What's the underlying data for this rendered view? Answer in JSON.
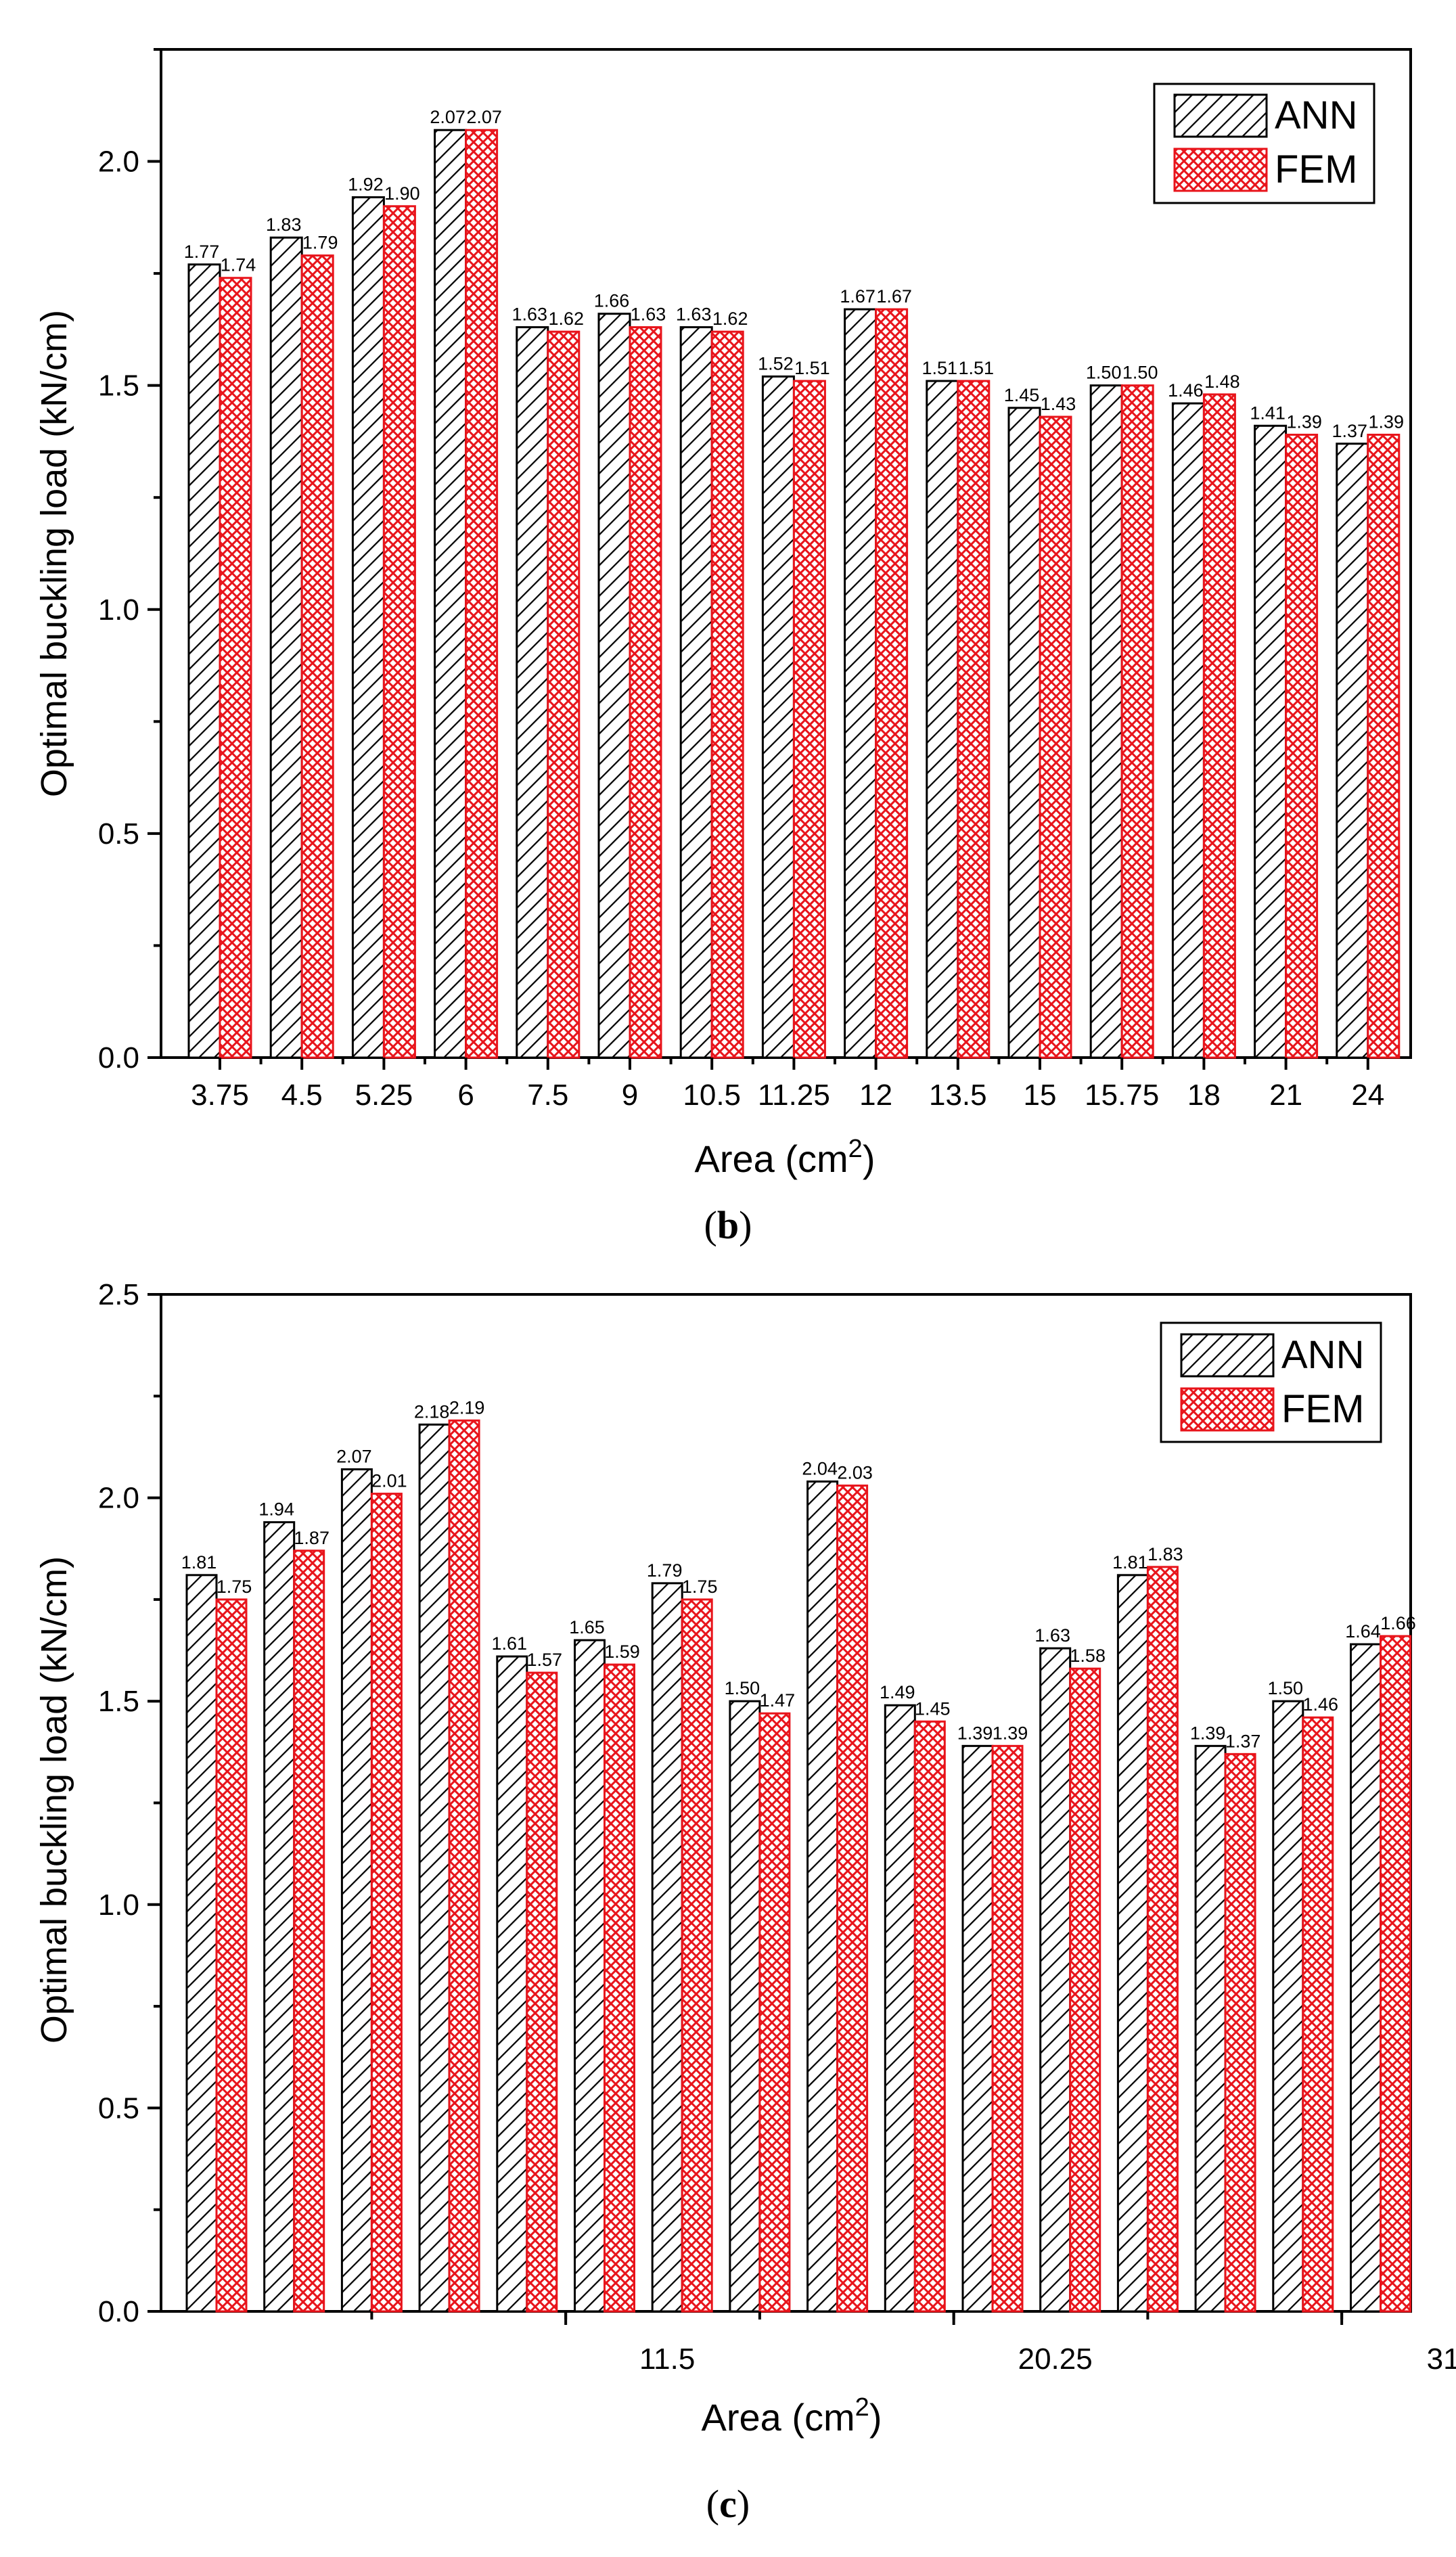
{
  "chart_data": [
    {
      "type": "bar",
      "panel": "b",
      "caption_letter": "b",
      "caption_open": "(",
      "caption_close": ")",
      "xlabel": "Area (cm",
      "xlabel_sup": "2",
      "xlabel_close": ")",
      "ylabel": "Optimal buckling load (kN/cm)",
      "ylim": [
        0,
        2.25
      ],
      "yticks": [
        "0.0",
        "0.5",
        "1.0",
        "1.5",
        "2.0"
      ],
      "categories": [
        "3.75",
        "4.5",
        "5.25",
        "6",
        "7.5",
        "9",
        "10.5",
        "11.25",
        "12",
        "13.5",
        "15",
        "15.75",
        "18",
        "21",
        "24"
      ],
      "series": [
        {
          "name": "ANN",
          "values": [
            1.77,
            1.83,
            1.92,
            2.07,
            1.63,
            1.66,
            1.63,
            1.52,
            1.67,
            1.51,
            1.45,
            1.5,
            1.46,
            1.41,
            1.37
          ]
        },
        {
          "name": "FEM",
          "values": [
            1.74,
            1.79,
            1.9,
            2.07,
            1.62,
            1.63,
            1.62,
            1.51,
            1.67,
            1.51,
            1.43,
            1.5,
            1.48,
            1.39,
            1.39
          ]
        }
      ],
      "legend": "top-right"
    },
    {
      "type": "bar",
      "panel": "c",
      "caption_letter": "c",
      "caption_open": "(",
      "caption_close": ")",
      "xlabel": "Area (cm",
      "xlabel_sup": "2",
      "xlabel_close": ")",
      "ylabel": "Optimal buckling load (kN/cm)",
      "ylim": [
        0,
        2.5
      ],
      "yticks": [
        "0.0",
        "0.5",
        "1.0",
        "1.5",
        "2.0",
        "2.5"
      ],
      "xtick_labels": [
        {
          "label": "11.5",
          "after_group": 5
        },
        {
          "label": "20.25",
          "after_group": 10
        },
        {
          "label": "31",
          "after_group": 15
        }
      ],
      "series": [
        {
          "name": "ANN",
          "values": [
            1.81,
            1.94,
            2.07,
            2.18,
            1.61,
            1.65,
            1.79,
            1.5,
            2.04,
            1.49,
            1.39,
            1.63,
            1.81,
            1.39,
            1.5,
            1.64
          ]
        },
        {
          "name": "FEM",
          "values": [
            1.75,
            1.87,
            2.01,
            2.19,
            1.57,
            1.59,
            1.75,
            1.47,
            2.03,
            1.45,
            1.39,
            1.58,
            1.83,
            1.37,
            1.46,
            1.66
          ]
        }
      ],
      "legend": "top-right"
    }
  ],
  "colors": {
    "ann_fill": "#ffffff",
    "ann_hatch": "#000000",
    "fem_fill": "#ffffff",
    "fem_hatch": "#e8141b",
    "fem_edge": "#e8141b"
  }
}
